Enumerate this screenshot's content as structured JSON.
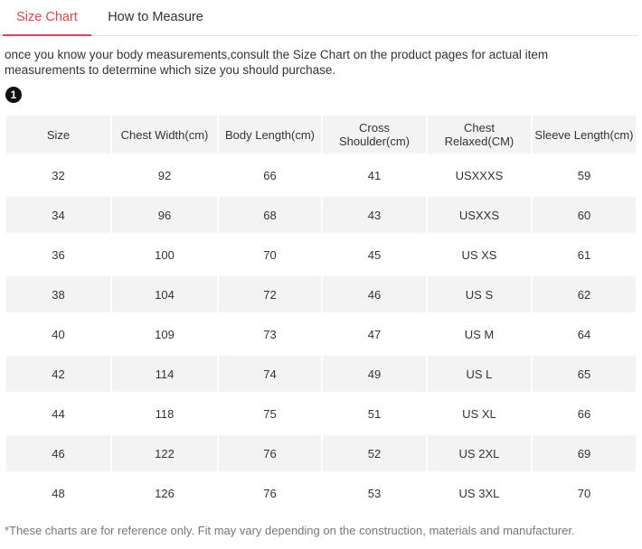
{
  "tabs": [
    {
      "label": "Size Chart",
      "active": true
    },
    {
      "label": "How to Measure",
      "active": false
    }
  ],
  "intro_text": "once you know your body measurements,consult the Size Chart on the product pages for actual item measurements to determine which size you should purchase.",
  "step_badge": "1",
  "table": {
    "headers": [
      "Size",
      "Chest Width(cm)",
      "Body Length(cm)",
      "Cross Shoulder(cm)",
      "Chest Relaxed(CM)",
      "Sleeve Length(cm)"
    ],
    "rows": [
      [
        "32",
        "92",
        "66",
        "41",
        "USXXXS",
        "59"
      ],
      [
        "34",
        "96",
        "68",
        "43",
        "USXXS",
        "60"
      ],
      [
        "36",
        "100",
        "70",
        "45",
        "US XS",
        "61"
      ],
      [
        "38",
        "104",
        "72",
        "46",
        "US S",
        "62"
      ],
      [
        "40",
        "109",
        "73",
        "47",
        "US M",
        "64"
      ],
      [
        "42",
        "114",
        "74",
        "49",
        "US L",
        "65"
      ],
      [
        "44",
        "118",
        "75",
        "51",
        "US XL",
        "66"
      ],
      [
        "46",
        "122",
        "76",
        "52",
        "US 2XL",
        "69"
      ],
      [
        "48",
        "126",
        "76",
        "53",
        "US 3XL",
        "70"
      ]
    ]
  },
  "footnote": "*These charts are for reference only. Fit may vary depending on the construction, materials and manufacturer.",
  "colors": {
    "accent": "#e64545",
    "header_bg": "#f3f3f3",
    "row_stripe": "#f3f3f3"
  }
}
